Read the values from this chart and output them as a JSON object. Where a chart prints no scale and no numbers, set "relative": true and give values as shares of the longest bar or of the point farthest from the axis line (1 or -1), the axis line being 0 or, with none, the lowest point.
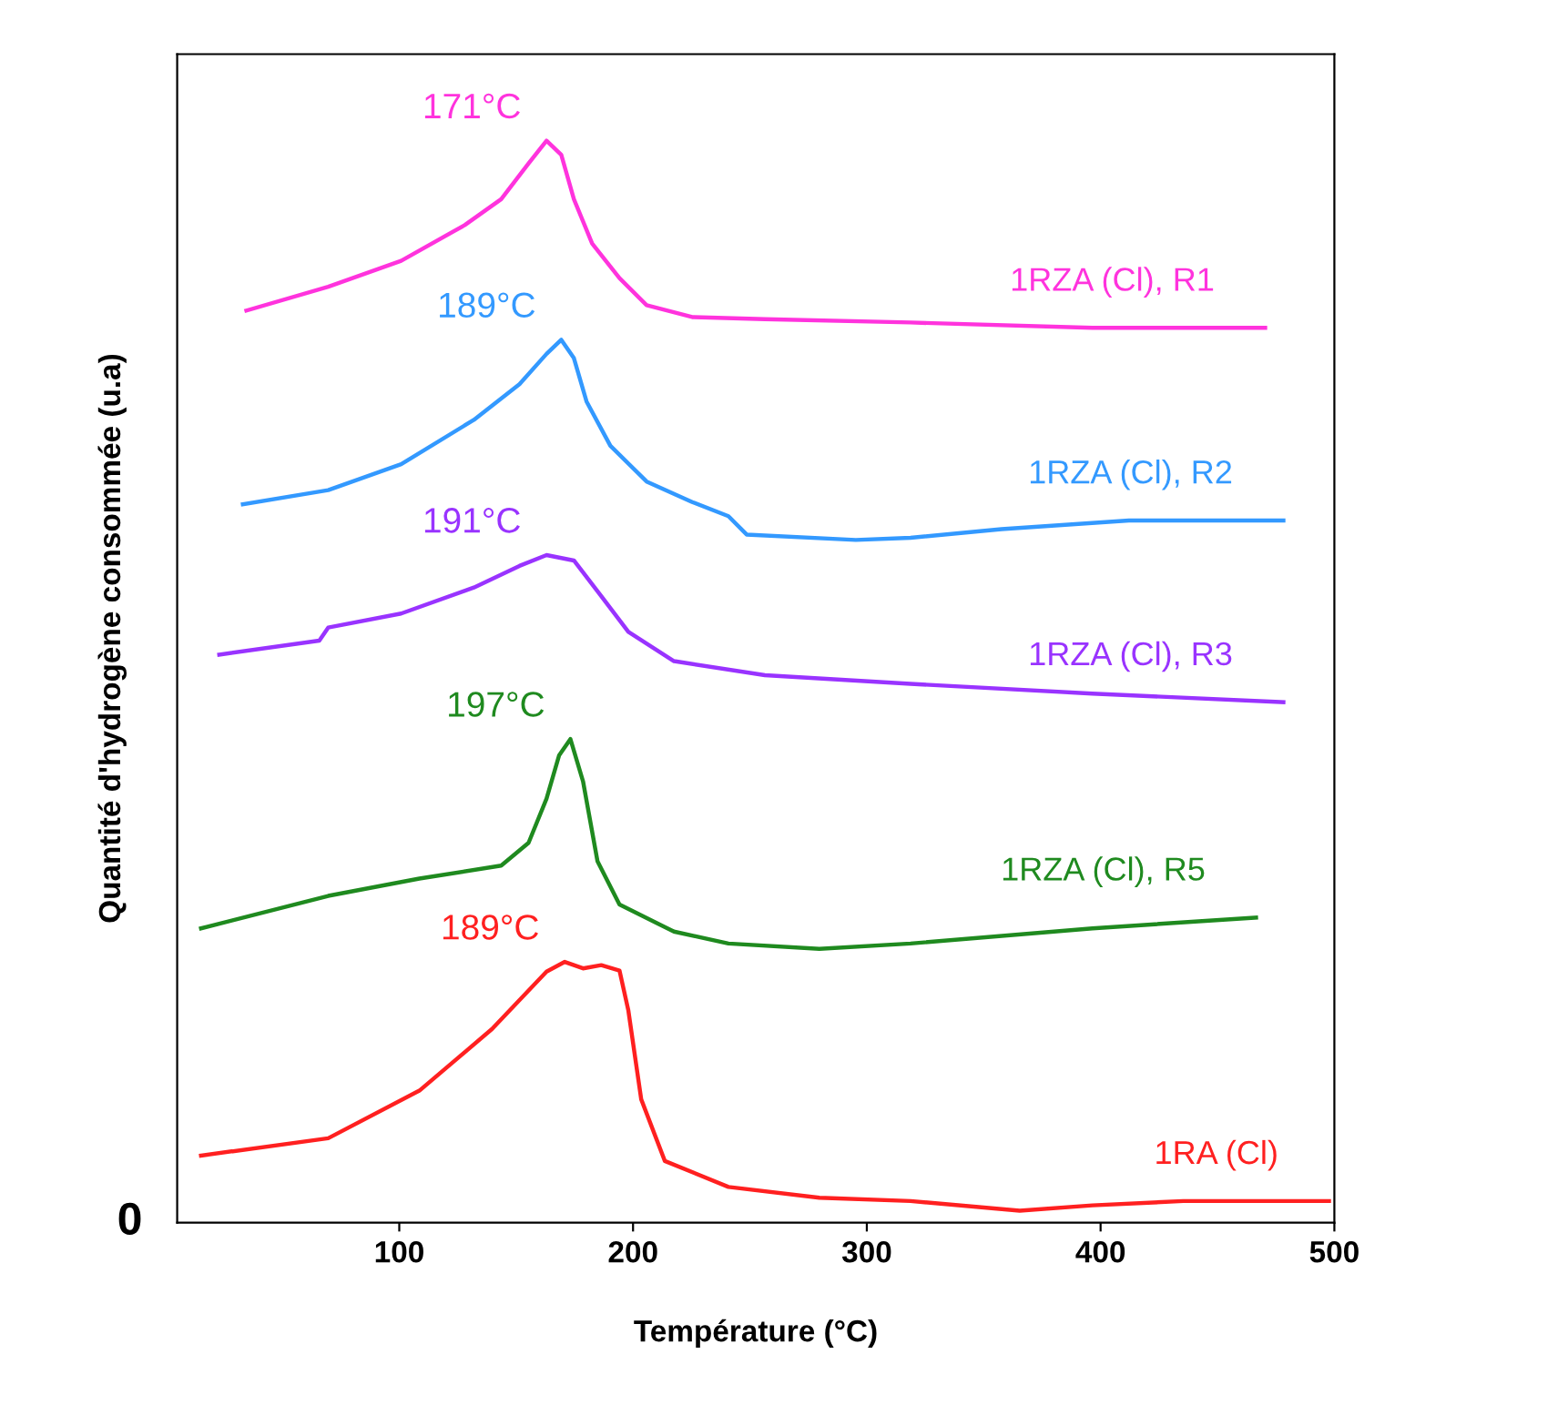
{
  "chart_data": {
    "type": "line",
    "relative": true,
    "xlabel": "Température (°C)",
    "ylabel": "Quantité d'hydrogène consommée (u.a)",
    "xlim": [
      5,
      500
    ],
    "xticks": [
      100,
      200,
      300,
      400,
      500
    ],
    "grid": false,
    "legend": false,
    "marker": "none",
    "line_style": "solid",
    "series": [
      {
        "name": "1RZA (Cl), R1",
        "color": "#ff33dd",
        "x": [
          34.6,
          69.6,
          100.8,
          128,
          143.6,
          155.3,
          163,
          169.3,
          174.7,
          182.5,
          194.2,
          205.8,
          225.3,
          256.4,
          318.7,
          396.5,
          470.4
        ],
        "values": [
          0.843,
          0.865,
          0.889,
          0.922,
          0.946,
          0.979,
          1.0,
          0.987,
          0.946,
          0.905,
          0.873,
          0.848,
          0.837,
          0.835,
          0.832,
          0.827,
          0.827
        ]
      },
      {
        "name": "1RZA (Cl), R2",
        "color": "#3399ff",
        "x": [
          33.1,
          69.6,
          100.8,
          131.9,
          151.4,
          163,
          169.3,
          174.7,
          180.1,
          190.3,
          205.8,
          225.3,
          240.8,
          248.6,
          295.3,
          318.7,
          357.6,
          412.1,
          478.2
        ],
        "values": [
          0.664,
          0.677,
          0.701,
          0.742,
          0.775,
          0.803,
          0.816,
          0.799,
          0.759,
          0.718,
          0.685,
          0.666,
          0.653,
          0.636,
          0.631,
          0.633,
          0.641,
          0.649,
          0.649
        ]
      },
      {
        "name": "1RZA (Cl), R3",
        "color": "#9933ff",
        "x": [
          23,
          65.8,
          69.6,
          100.8,
          131.9,
          151.4,
          163,
          174.7,
          186.4,
          198,
          217.5,
          256.4,
          318.7,
          396.5,
          478.2
        ],
        "values": [
          0.525,
          0.538,
          0.55,
          0.563,
          0.587,
          0.607,
          0.617,
          0.612,
          0.579,
          0.546,
          0.519,
          0.506,
          0.498,
          0.489,
          0.481
        ]
      },
      {
        "name": "1RZA (Cl), R5",
        "color": "#1f8a1f",
        "x": [
          15.2,
          69.6,
          108.6,
          143.6,
          155.3,
          163,
          168.4,
          173.2,
          178.6,
          184.8,
          194.2,
          217.5,
          240.8,
          279.7,
          318.7,
          396.5,
          466.5
        ],
        "values": [
          0.272,
          0.302,
          0.318,
          0.33,
          0.351,
          0.392,
          0.432,
          0.447,
          0.408,
          0.334,
          0.294,
          0.269,
          0.258,
          0.253,
          0.258,
          0.272,
          0.282
        ]
      },
      {
        "name": "1RA (Cl)",
        "color": "#ff2020",
        "x": [
          15.2,
          69.6,
          108.6,
          139.7,
          163,
          170.8,
          178.6,
          186.4,
          194.2,
          198,
          203.5,
          213.6,
          240.8,
          279.7,
          318.7,
          365.4,
          396.5,
          435.4,
          497.7
        ],
        "values": [
          0.062,
          0.078,
          0.122,
          0.179,
          0.232,
          0.241,
          0.235,
          0.238,
          0.233,
          0.196,
          0.114,
          0.057,
          0.033,
          0.023,
          0.02,
          0.011,
          0.016,
          0.02,
          0.02
        ]
      }
    ],
    "annotations": [
      {
        "text": "171°C",
        "x": 163,
        "y": 1.0
      },
      {
        "text": "189°C",
        "x": 169.3,
        "y": 0.816
      },
      {
        "text": "191°C",
        "x": 163,
        "y": 0.617
      },
      {
        "text": "197°C",
        "x": 173.2,
        "y": 0.447
      },
      {
        "text": "189°C",
        "x": 170.8,
        "y": 0.241
      },
      "0"
    ]
  }
}
